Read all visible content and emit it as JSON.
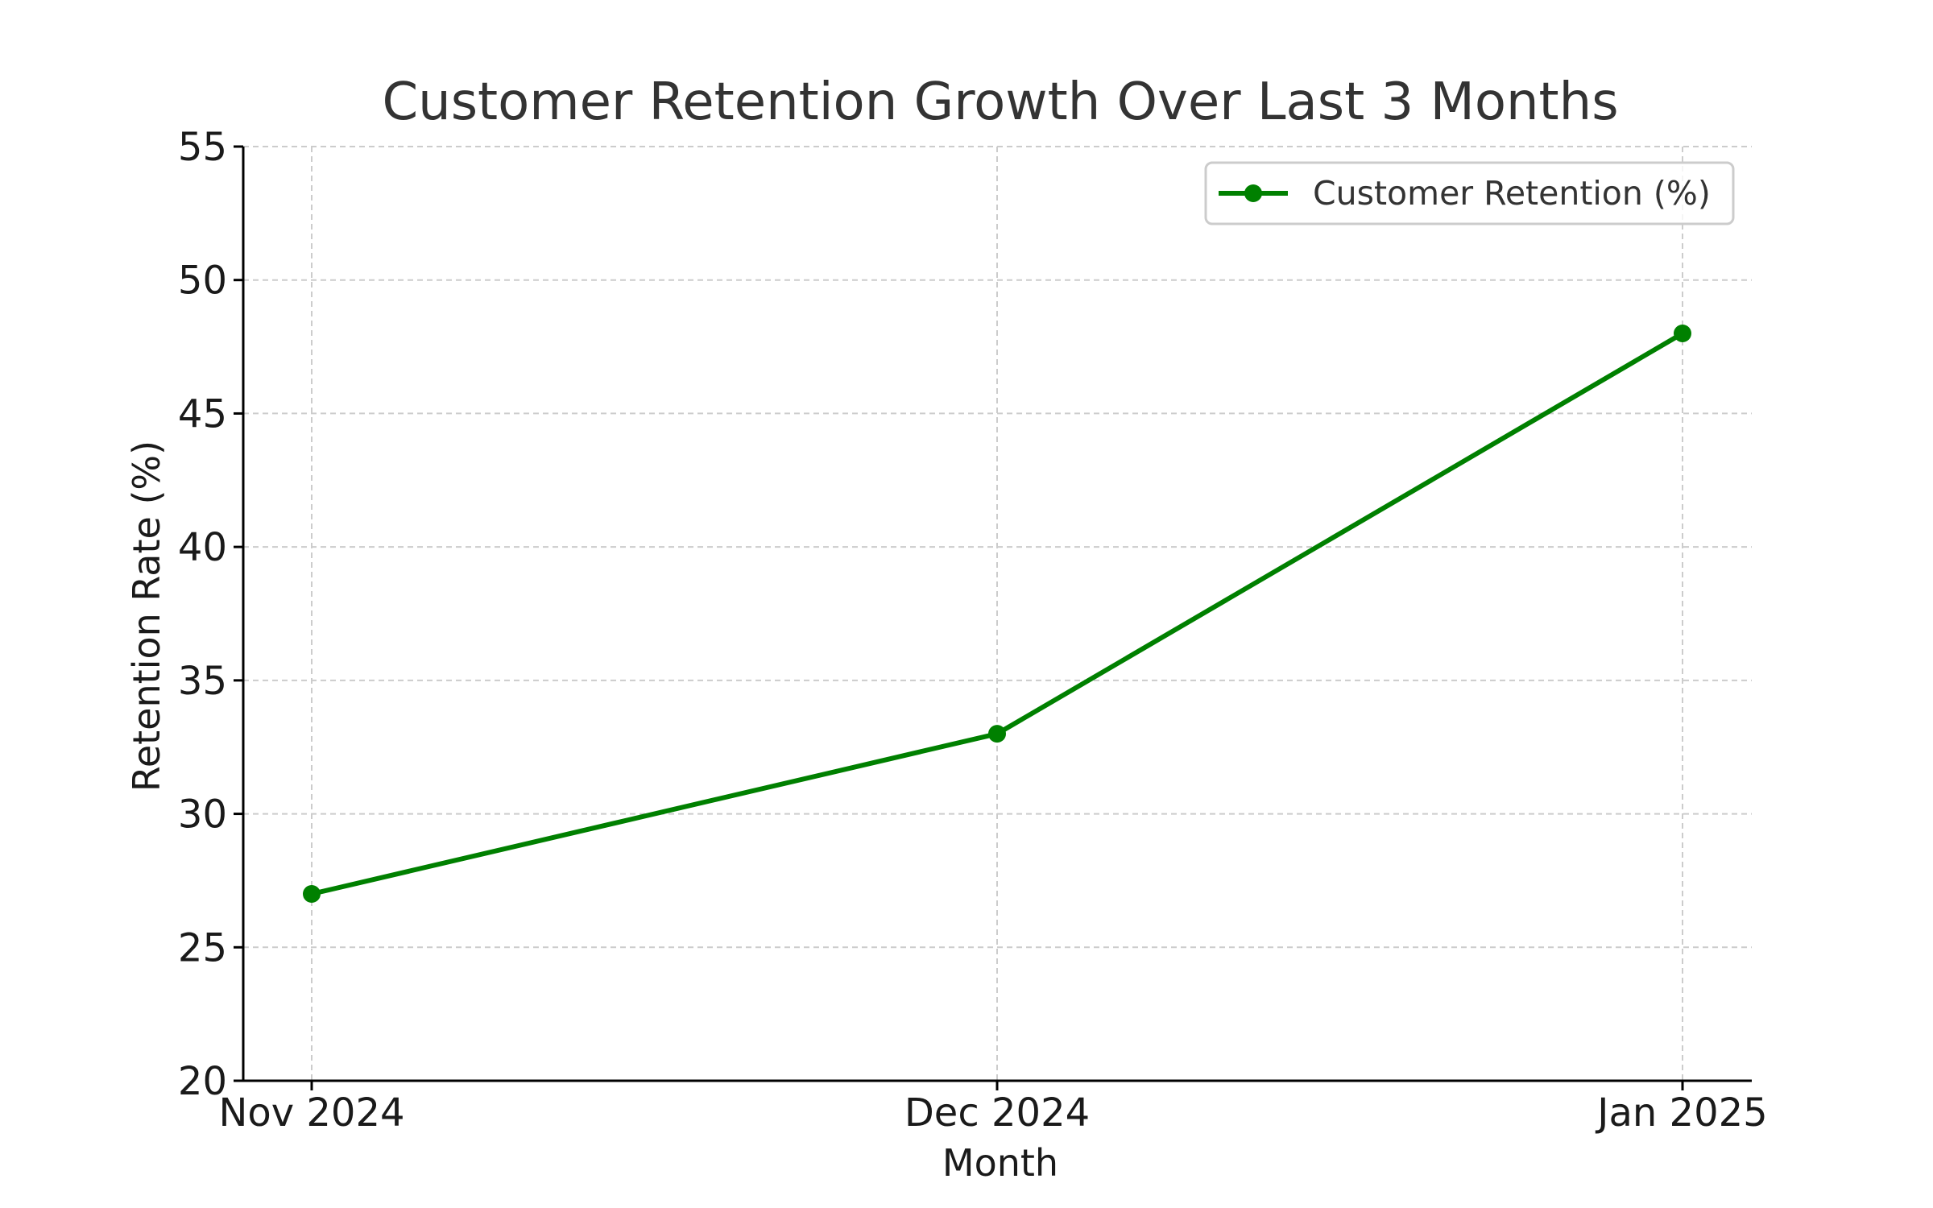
{
  "chart_data": {
    "type": "line",
    "title": "Customer Retention Growth Over Last 3 Months",
    "xlabel": "Month",
    "ylabel": "Retention Rate (%)",
    "categories": [
      "Nov 2024",
      "Dec 2024",
      "Jan 2025"
    ],
    "series": [
      {
        "name": "Customer Retention (%)",
        "values": [
          27,
          33,
          48
        ],
        "color": "#008000",
        "marker": "circle"
      }
    ],
    "ylim": [
      20,
      55
    ],
    "yticks": [
      20,
      25,
      30,
      35,
      40,
      45,
      50,
      55
    ],
    "grid": true,
    "legend_position": "top-right"
  }
}
